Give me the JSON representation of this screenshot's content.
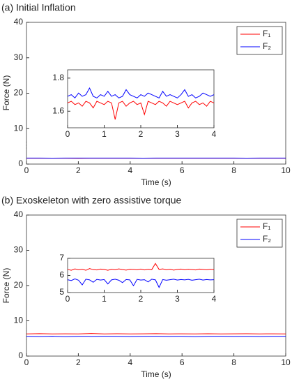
{
  "chart_data": [
    {
      "type": "line",
      "title": "(a) Initial Inflation",
      "xlabel": "Time (s)",
      "ylabel": "Force (N)",
      "xlim": [
        0,
        10
      ],
      "ylim": [
        0,
        40
      ],
      "xticks": [
        0,
        2,
        4,
        6,
        8,
        10
      ],
      "yticks": [
        0,
        10,
        20,
        30,
        40
      ],
      "legend": "upper right",
      "x": [
        0,
        0.5,
        1,
        1.5,
        2,
        2.5,
        3,
        3.5,
        4,
        4.5,
        5,
        5.5,
        6,
        6.5,
        7,
        7.5,
        8,
        8.5,
        9,
        9.5,
        10
      ],
      "series": [
        {
          "name": "F₁",
          "color": "#ff0000",
          "values": [
            1.65,
            1.66,
            1.64,
            1.65,
            1.63,
            1.66,
            1.65,
            1.64,
            1.65,
            1.66,
            1.65,
            1.64,
            1.65,
            1.66,
            1.65,
            1.64,
            1.65,
            1.65,
            1.66,
            1.64,
            1.65
          ]
        },
        {
          "name": "F₂",
          "color": "#0000ff",
          "values": [
            1.69,
            1.7,
            1.68,
            1.7,
            1.69,
            1.71,
            1.69,
            1.7,
            1.69,
            1.68,
            1.7,
            1.69,
            1.7,
            1.69,
            1.71,
            1.69,
            1.7,
            1.68,
            1.69,
            1.7,
            1.69
          ]
        }
      ],
      "inset": {
        "xlim": [
          0,
          4
        ],
        "ylim": [
          1.5,
          1.85
        ],
        "xticks": [
          0,
          1,
          2,
          3,
          4
        ],
        "yticks": [
          1.6,
          1.8
        ],
        "x": [
          0,
          0.1,
          0.2,
          0.3,
          0.4,
          0.5,
          0.6,
          0.7,
          0.8,
          0.9,
          1,
          1.1,
          1.2,
          1.3,
          1.4,
          1.5,
          1.6,
          1.7,
          1.8,
          1.9,
          2,
          2.1,
          2.2,
          2.3,
          2.4,
          2.5,
          2.6,
          2.7,
          2.8,
          2.9,
          3,
          3.1,
          3.2,
          3.3,
          3.4,
          3.5,
          3.6,
          3.7,
          3.8,
          3.9,
          4
        ],
        "series": [
          {
            "color": "#ff0000",
            "values": [
              1.65,
              1.66,
              1.64,
              1.65,
              1.63,
              1.66,
              1.65,
              1.62,
              1.66,
              1.65,
              1.64,
              1.66,
              1.65,
              1.55,
              1.65,
              1.66,
              1.63,
              1.65,
              1.66,
              1.64,
              1.65,
              1.58,
              1.66,
              1.65,
              1.64,
              1.66,
              1.65,
              1.63,
              1.66,
              1.65,
              1.64,
              1.65,
              1.66,
              1.62,
              1.65,
              1.66,
              1.64,
              1.65,
              1.63,
              1.66,
              1.65
            ]
          },
          {
            "color": "#0000ff",
            "values": [
              1.69,
              1.7,
              1.68,
              1.71,
              1.69,
              1.7,
              1.74,
              1.69,
              1.68,
              1.7,
              1.69,
              1.72,
              1.69,
              1.7,
              1.68,
              1.69,
              1.73,
              1.7,
              1.69,
              1.68,
              1.7,
              1.69,
              1.71,
              1.7,
              1.69,
              1.68,
              1.72,
              1.69,
              1.7,
              1.69,
              1.68,
              1.7,
              1.73,
              1.69,
              1.7,
              1.68,
              1.69,
              1.71,
              1.7,
              1.69,
              1.7
            ]
          }
        ]
      }
    },
    {
      "type": "line",
      "title": "(b) Exoskeleton with zero assistive torque",
      "xlabel": "Time (s)",
      "ylabel": "Force (N)",
      "xlim": [
        0,
        10
      ],
      "ylim": [
        0,
        40
      ],
      "xticks": [
        0,
        2,
        4,
        6,
        8,
        10
      ],
      "yticks": [
        0,
        10,
        20,
        30,
        40
      ],
      "legend": "upper right",
      "x": [
        0,
        0.5,
        1,
        1.5,
        2,
        2.5,
        3,
        3.5,
        4,
        4.5,
        5,
        5.5,
        6,
        6.5,
        7,
        7.5,
        8,
        8.5,
        9,
        9.5,
        10
      ],
      "series": [
        {
          "name": "F₁",
          "color": "#ff0000",
          "values": [
            6.3,
            6.35,
            6.28,
            6.32,
            6.3,
            6.4,
            6.3,
            6.33,
            6.29,
            6.31,
            6.35,
            6.3,
            6.32,
            6.28,
            6.33,
            6.3,
            6.31,
            6.34,
            6.3,
            6.32,
            6.3
          ]
        },
        {
          "name": "F₂",
          "color": "#0000ff",
          "values": [
            5.6,
            5.55,
            5.62,
            5.5,
            5.6,
            5.58,
            5.62,
            5.6,
            5.55,
            5.6,
            5.62,
            5.58,
            5.6,
            5.5,
            5.6,
            5.62,
            5.58,
            5.6,
            5.55,
            5.6,
            5.6
          ]
        }
      ],
      "inset": {
        "xlim": [
          0,
          4
        ],
        "ylim": [
          5,
          7
        ],
        "xticks": [
          0,
          1,
          2,
          3,
          4
        ],
        "yticks": [
          5,
          6,
          7
        ],
        "x": [
          0,
          0.1,
          0.2,
          0.3,
          0.4,
          0.5,
          0.6,
          0.7,
          0.8,
          0.9,
          1,
          1.1,
          1.2,
          1.3,
          1.4,
          1.5,
          1.6,
          1.7,
          1.8,
          1.9,
          2,
          2.1,
          2.2,
          2.3,
          2.4,
          2.5,
          2.6,
          2.7,
          2.8,
          2.9,
          3,
          3.1,
          3.2,
          3.3,
          3.4,
          3.5,
          3.6,
          3.7,
          3.8,
          3.9,
          4
        ],
        "series": [
          {
            "color": "#ff0000",
            "values": [
              6.35,
              6.3,
              6.38,
              6.33,
              6.36,
              6.3,
              6.4,
              6.34,
              6.32,
              6.37,
              6.35,
              6.3,
              6.36,
              6.33,
              6.38,
              6.34,
              6.31,
              6.36,
              6.35,
              6.33,
              6.37,
              6.32,
              6.36,
              6.34,
              6.7,
              6.35,
              6.38,
              6.33,
              6.36,
              6.31,
              6.35,
              6.37,
              6.33,
              6.36,
              6.34,
              6.32,
              6.37,
              6.35,
              6.33,
              6.36,
              6.34
            ]
          },
          {
            "color": "#0000ff",
            "values": [
              5.75,
              5.7,
              5.8,
              5.72,
              5.45,
              5.78,
              5.74,
              5.6,
              5.77,
              5.73,
              5.76,
              5.5,
              5.74,
              5.78,
              5.72,
              5.58,
              5.76,
              5.74,
              5.4,
              5.77,
              5.73,
              5.75,
              5.62,
              5.78,
              5.74,
              5.3,
              5.76,
              5.72,
              5.75,
              5.78,
              5.73,
              5.76,
              5.74,
              5.77,
              5.72,
              5.75,
              5.78,
              5.73,
              5.76,
              5.74,
              5.75
            ]
          }
        ]
      }
    }
  ]
}
